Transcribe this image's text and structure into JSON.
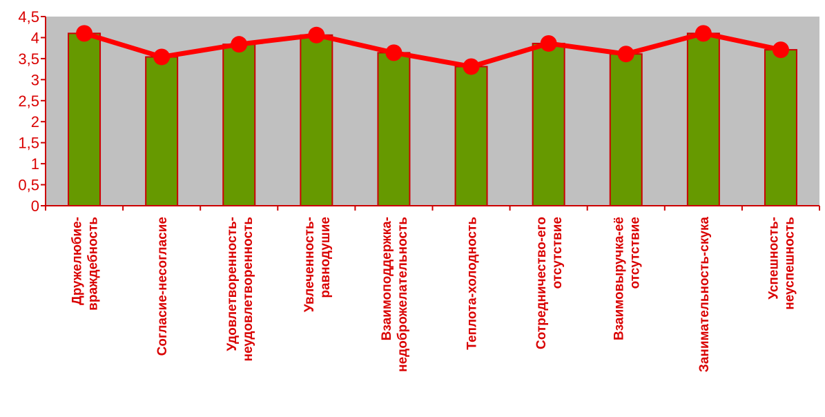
{
  "chart_data": {
    "type": "bar",
    "categories": [
      [
        "Дружелюбие-",
        "враждебность"
      ],
      [
        "Согласие-несогласие"
      ],
      [
        "Удовлетворенность-",
        "неудовлетворенность"
      ],
      [
        "Увлеченность-",
        "равнодушие"
      ],
      [
        "Взаимоподдержка-",
        "недоброжелательность"
      ],
      [
        "Теплота-холодность"
      ],
      [
        "Сотредничество-его",
        "отсутствие"
      ],
      [
        "Взаимовыручка-её",
        "отсутствие"
      ],
      [
        "Занимательность-скука"
      ],
      [
        "Успешность-",
        "неуспешность"
      ]
    ],
    "series": [
      {
        "kind": "bar",
        "values": [
          4.1,
          3.54,
          3.84,
          4.06,
          3.64,
          3.31,
          3.86,
          3.61,
          4.1,
          3.71
        ]
      },
      {
        "kind": "line",
        "values": [
          4.1,
          3.54,
          3.84,
          4.06,
          3.64,
          3.31,
          3.86,
          3.61,
          4.1,
          3.71
        ]
      }
    ],
    "ylim": [
      0,
      4.5
    ],
    "yticks": [
      "0",
      "0,5",
      "1",
      "1,5",
      "2",
      "2,5",
      "3",
      "3,5",
      "4",
      "4,5"
    ],
    "grid": false,
    "legend": "none"
  },
  "colors": {
    "plot_background": "#c0c0c0",
    "bar_fill": "#669900",
    "bar_edge": "#cc0000",
    "line": "#ff0000",
    "marker": "#ff0000",
    "axis": "#cc0000",
    "text": "#d90000"
  }
}
